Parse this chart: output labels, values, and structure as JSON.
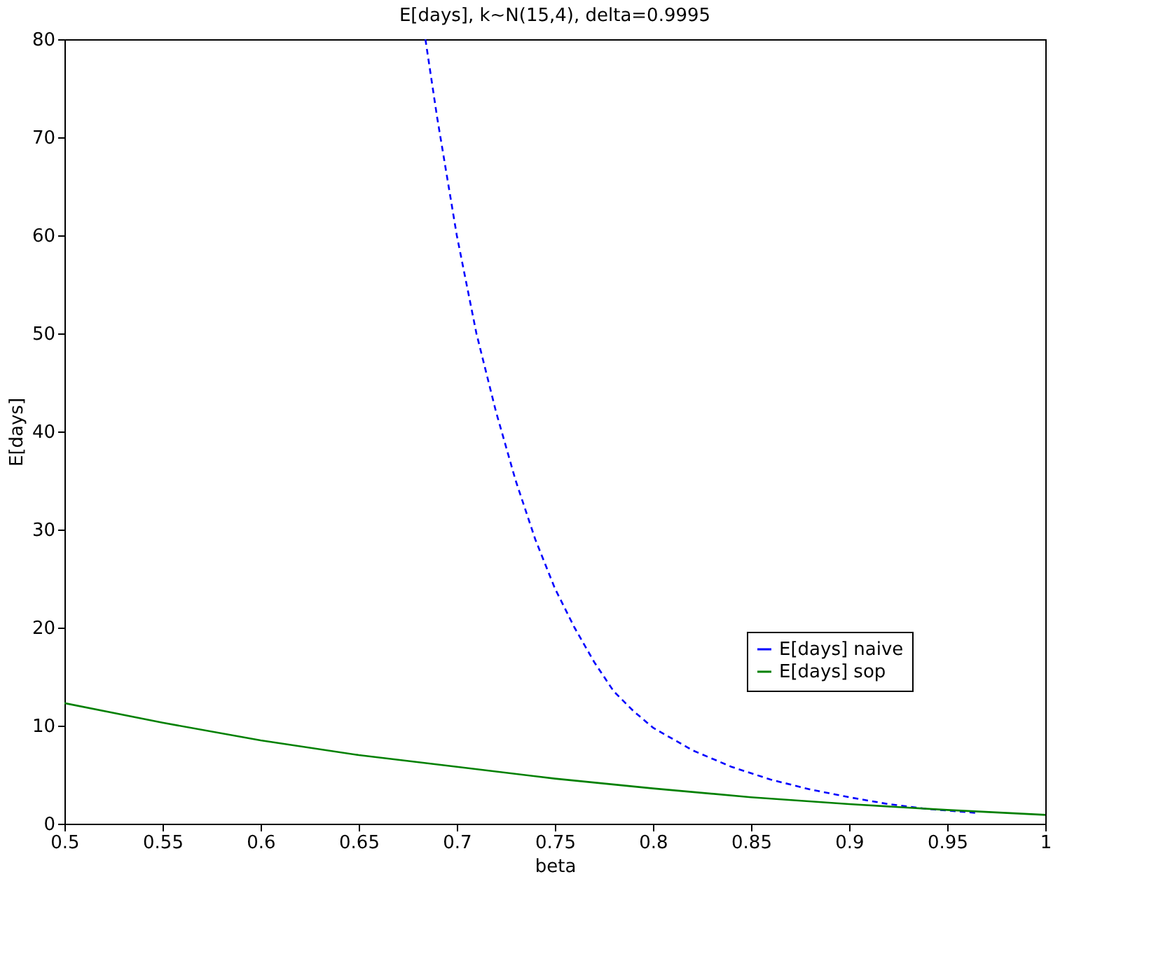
{
  "chart_data": {
    "type": "line",
    "title": "E[days], k~N(15,4), delta=0.9995",
    "xlabel": "beta",
    "ylabel": "E[days]",
    "xlim": [
      0.5,
      1
    ],
    "xticks": [
      0.5,
      0.55,
      0.6,
      0.65,
      0.7,
      0.75,
      0.8,
      0.85,
      0.9,
      0.95,
      1
    ],
    "ylim": [
      0,
      80
    ],
    "yticks": [
      0,
      10,
      20,
      30,
      40,
      50,
      60,
      70,
      80
    ],
    "legend": "bottom right",
    "grid": false,
    "series": [
      {
        "name": "E[days] naive",
        "color": "#0000ff",
        "line_style": "dashed",
        "x": [
          0.684,
          0.69,
          0.7,
          0.71,
          0.72,
          0.73,
          0.74,
          0.75,
          0.76,
          0.77,
          0.78,
          0.79,
          0.8,
          0.82,
          0.84,
          0.86,
          0.88,
          0.9,
          0.92,
          0.94,
          0.965
        ],
        "values": [
          80,
          72,
          60,
          50,
          42,
          35,
          29,
          24,
          20,
          16.5,
          13.5,
          11.5,
          9.8,
          7.5,
          5.8,
          4.5,
          3.5,
          2.7,
          2.0,
          1.5,
          1.1
        ]
      },
      {
        "name": "E[days] sop",
        "color": "#008000",
        "line_style": "solid",
        "x": [
          0.5,
          0.55,
          0.6,
          0.65,
          0.7,
          0.75,
          0.8,
          0.85,
          0.9,
          0.95,
          1.0
        ],
        "values": [
          12.3,
          10.3,
          8.5,
          7,
          5.8,
          4.6,
          3.6,
          2.7,
          2.0,
          1.4,
          0.9
        ]
      }
    ]
  }
}
